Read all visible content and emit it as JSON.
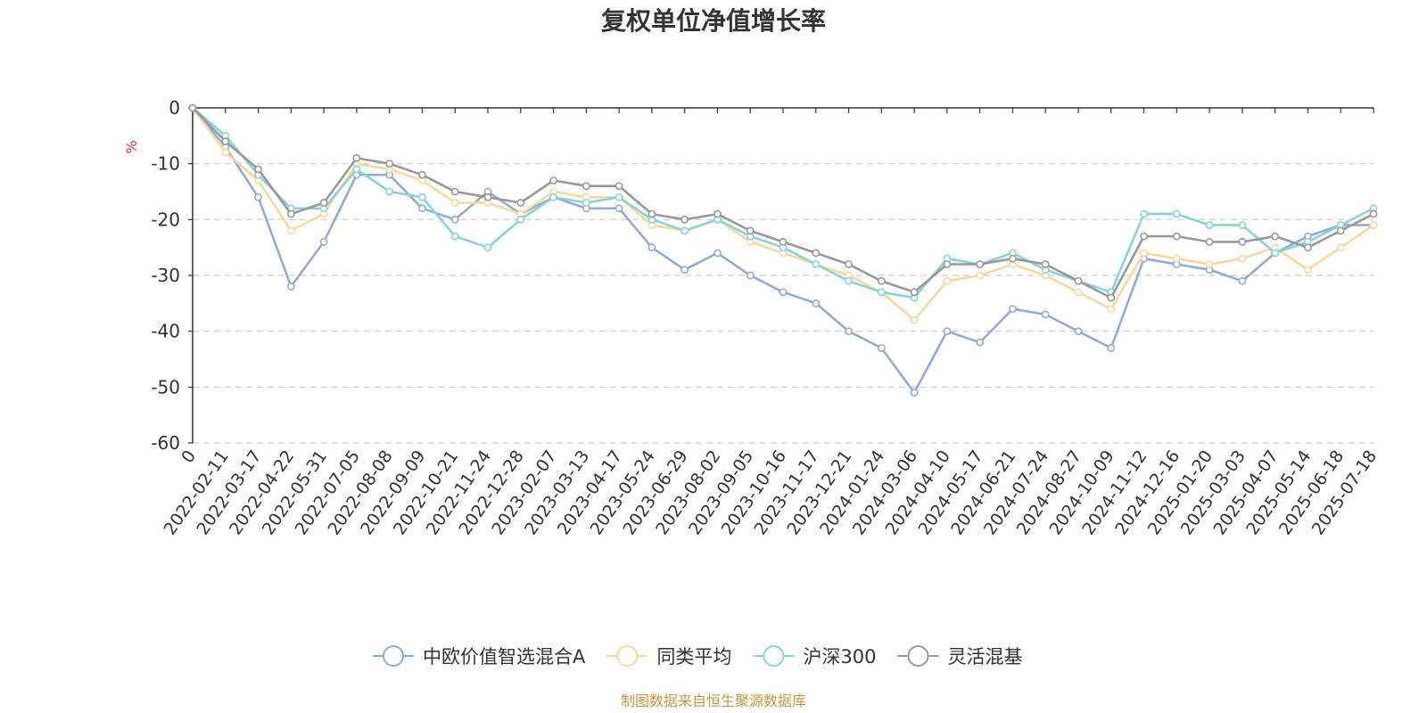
{
  "chart_data": {
    "type": "line",
    "title": "复权单位净值增长率",
    "ylabel": "%",
    "ylim": [
      -60,
      0
    ],
    "yticks": [
      0,
      -10,
      -20,
      -30,
      -40,
      -50,
      -60
    ],
    "grid": true,
    "legend_position": "bottom",
    "x_origin_label": "0",
    "x": [
      "2022-02-11",
      "2022-03-17",
      "2022-04-22",
      "2022-05-31",
      "2022-07-05",
      "2022-08-08",
      "2022-09-09",
      "2022-10-21",
      "2022-11-24",
      "2022-12-28",
      "2023-02-07",
      "2023-03-13",
      "2023-04-17",
      "2023-05-24",
      "2023-06-29",
      "2023-08-02",
      "2023-09-05",
      "2023-10-16",
      "2023-11-17",
      "2023-12-21",
      "2024-01-24",
      "2024-03-06",
      "2024-04-10",
      "2024-05-17",
      "2024-06-21",
      "2024-07-24",
      "2024-08-27",
      "2024-10-09",
      "2024-11-12",
      "2024-12-16",
      "2025-01-20",
      "2025-03-03",
      "2025-04-07",
      "2025-05-14",
      "2025-06-18",
      "2025-07-18"
    ],
    "series": [
      {
        "name": "中欧价值智选混合A",
        "color": "#8facd9",
        "values": [
          -7,
          -16,
          -32,
          -24,
          -12,
          -12,
          -18,
          -20,
          -15,
          -19,
          -16,
          -18,
          -18,
          -25,
          -29,
          -26,
          -30,
          -33,
          -35,
          -40,
          -43,
          -51,
          -40,
          -42,
          -36,
          -37,
          -40,
          -43,
          -27,
          -28,
          -29,
          -31,
          -26,
          -23,
          -21,
          -21
        ]
      },
      {
        "name": "同类平均",
        "color": "#fad89a",
        "values": [
          -8,
          -13,
          -22,
          -19,
          -10,
          -11,
          -13,
          -17,
          -17,
          -19,
          -15,
          -16,
          -16,
          -21,
          -22,
          -20,
          -24,
          -26,
          -28,
          -30,
          -33,
          -38,
          -31,
          -30,
          -28,
          -30,
          -33,
          -36,
          -26,
          -27,
          -28,
          -27,
          -25,
          -29,
          -25,
          -21
        ]
      },
      {
        "name": "沪深300",
        "color": "#85d5d8",
        "values": [
          -5,
          -12,
          -18,
          -18,
          -11,
          -15,
          -16,
          -23,
          -25,
          -20,
          -16,
          -17,
          -16,
          -20,
          -22,
          -20,
          -23,
          -25,
          -28,
          -31,
          -33,
          -34,
          -27,
          -28,
          -26,
          -29,
          -31,
          -33,
          -19,
          -19,
          -21,
          -21,
          -26,
          -24,
          -21,
          -18
        ]
      },
      {
        "name": "灵活混基",
        "color": "#999999",
        "values": [
          -6,
          -11,
          -19,
          -17,
          -9,
          -10,
          -12,
          -15,
          -16,
          -17,
          -13,
          -14,
          -14,
          -19,
          -20,
          -19,
          -22,
          -24,
          -26,
          -28,
          -31,
          -33,
          -28,
          -28,
          -27,
          -28,
          -31,
          -34,
          -23,
          -23,
          -24,
          -24,
          -23,
          -25,
          -22,
          -19
        ]
      }
    ]
  },
  "source_note": "制图数据来自恒生聚源数据库"
}
